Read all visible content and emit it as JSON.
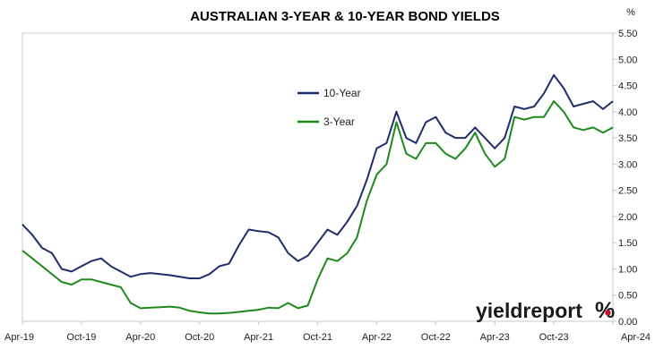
{
  "chart_data": {
    "type": "line",
    "title": "AUSTRALIAN 3-YEAR & 10-YEAR BOND YIELDS",
    "ylabel": "%",
    "xlabel": "",
    "ylim": [
      0,
      5.5
    ],
    "yticks": [
      "0.00",
      "0.50",
      "1.00",
      "1.50",
      "2.00",
      "2.50",
      "3.00",
      "3.50",
      "4.00",
      "4.50",
      "5.00",
      "5.50"
    ],
    "xlim": [
      "2019-04",
      "2024-04"
    ],
    "xticks": [
      "Apr-19",
      "Oct-19",
      "Apr-20",
      "Oct-20",
      "Apr-21",
      "Oct-21",
      "Apr-22",
      "Oct-22",
      "Apr-23",
      "Oct-23",
      "Apr-24"
    ],
    "grid": false,
    "legend": "upper-center",
    "x": [
      "2019-04",
      "2019-05",
      "2019-06",
      "2019-07",
      "2019-08",
      "2019-09",
      "2019-10",
      "2019-11",
      "2019-12",
      "2020-01",
      "2020-02",
      "2020-03",
      "2020-04",
      "2020-05",
      "2020-06",
      "2020-07",
      "2020-08",
      "2020-09",
      "2020-10",
      "2020-11",
      "2020-12",
      "2021-01",
      "2021-02",
      "2021-03",
      "2021-04",
      "2021-05",
      "2021-06",
      "2021-07",
      "2021-08",
      "2021-09",
      "2021-10",
      "2021-11",
      "2021-12",
      "2022-01",
      "2022-02",
      "2022-03",
      "2022-04",
      "2022-05",
      "2022-06",
      "2022-07",
      "2022-08",
      "2022-09",
      "2022-10",
      "2022-11",
      "2022-12",
      "2023-01",
      "2023-02",
      "2023-03",
      "2023-04",
      "2023-05",
      "2023-06",
      "2023-07",
      "2023-08",
      "2023-09",
      "2023-10",
      "2023-11",
      "2023-12",
      "2024-01",
      "2024-02",
      "2024-03",
      "2024-04"
    ],
    "series": [
      {
        "name": "10-Year",
        "color": "#1f2d6b",
        "values": [
          1.85,
          1.65,
          1.4,
          1.3,
          1.0,
          0.95,
          1.05,
          1.15,
          1.2,
          1.05,
          0.95,
          0.85,
          0.9,
          0.92,
          0.9,
          0.88,
          0.85,
          0.82,
          0.82,
          0.9,
          1.05,
          1.1,
          1.45,
          1.75,
          1.72,
          1.7,
          1.6,
          1.3,
          1.15,
          1.25,
          1.5,
          1.75,
          1.65,
          1.9,
          2.2,
          2.7,
          3.3,
          3.4,
          4.0,
          3.5,
          3.4,
          3.8,
          3.9,
          3.6,
          3.5,
          3.5,
          3.7,
          3.5,
          3.3,
          3.5,
          4.1,
          4.05,
          4.1,
          4.35,
          4.7,
          4.45,
          4.1,
          4.15,
          4.2,
          4.05,
          4.2
        ]
      },
      {
        "name": "3-Year",
        "color": "#1e8a1e",
        "values": [
          1.35,
          1.2,
          1.05,
          0.9,
          0.75,
          0.7,
          0.8,
          0.8,
          0.75,
          0.7,
          0.65,
          0.35,
          0.25,
          0.26,
          0.27,
          0.28,
          0.26,
          0.2,
          0.17,
          0.15,
          0.15,
          0.16,
          0.18,
          0.2,
          0.22,
          0.26,
          0.25,
          0.35,
          0.25,
          0.3,
          0.8,
          1.2,
          1.15,
          1.3,
          1.6,
          2.3,
          2.8,
          3.0,
          3.8,
          3.2,
          3.1,
          3.4,
          3.4,
          3.2,
          3.1,
          3.3,
          3.6,
          3.2,
          2.95,
          3.1,
          3.9,
          3.85,
          3.9,
          3.9,
          4.2,
          4.0,
          3.7,
          3.65,
          3.7,
          3.6,
          3.7
        ]
      }
    ]
  },
  "branding": {
    "logo_text": "yieldreport",
    "logo_symbol": "%",
    "logo_color": "#1a1a1a",
    "logo_accent_color": "#c8102e"
  }
}
